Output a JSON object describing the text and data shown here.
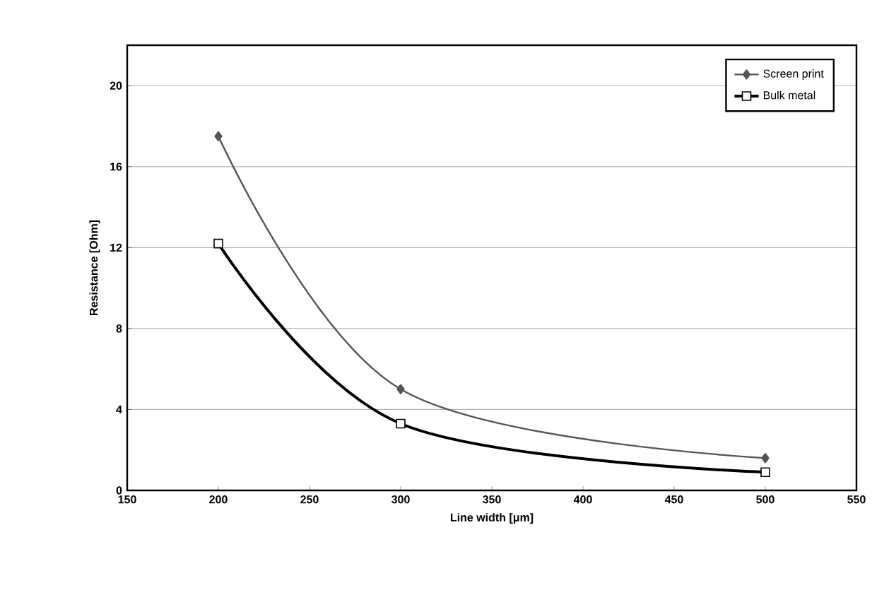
{
  "chart_data": {
    "type": "line",
    "xlabel": "Line width [μm]",
    "ylabel": "Resistance [Ohm]",
    "xlim": [
      150,
      550
    ],
    "xticks": [
      150,
      200,
      250,
      300,
      350,
      400,
      450,
      500,
      550
    ],
    "ylim": [
      0,
      22
    ],
    "yticks": [
      0,
      4,
      8,
      12,
      16,
      20
    ],
    "grid": "y",
    "legend": "top right",
    "line_style": "solid",
    "series": [
      {
        "name": "Screen print",
        "color": "#555555",
        "marker": "diamond",
        "x": [
          200,
          300,
          500
        ],
        "values": [
          17.5,
          5.0,
          1.6
        ]
      },
      {
        "name": "Bulk metal",
        "color": "#000000",
        "marker": "square",
        "x": [
          200,
          300,
          500
        ],
        "values": [
          12.2,
          3.3,
          0.9
        ]
      }
    ]
  }
}
